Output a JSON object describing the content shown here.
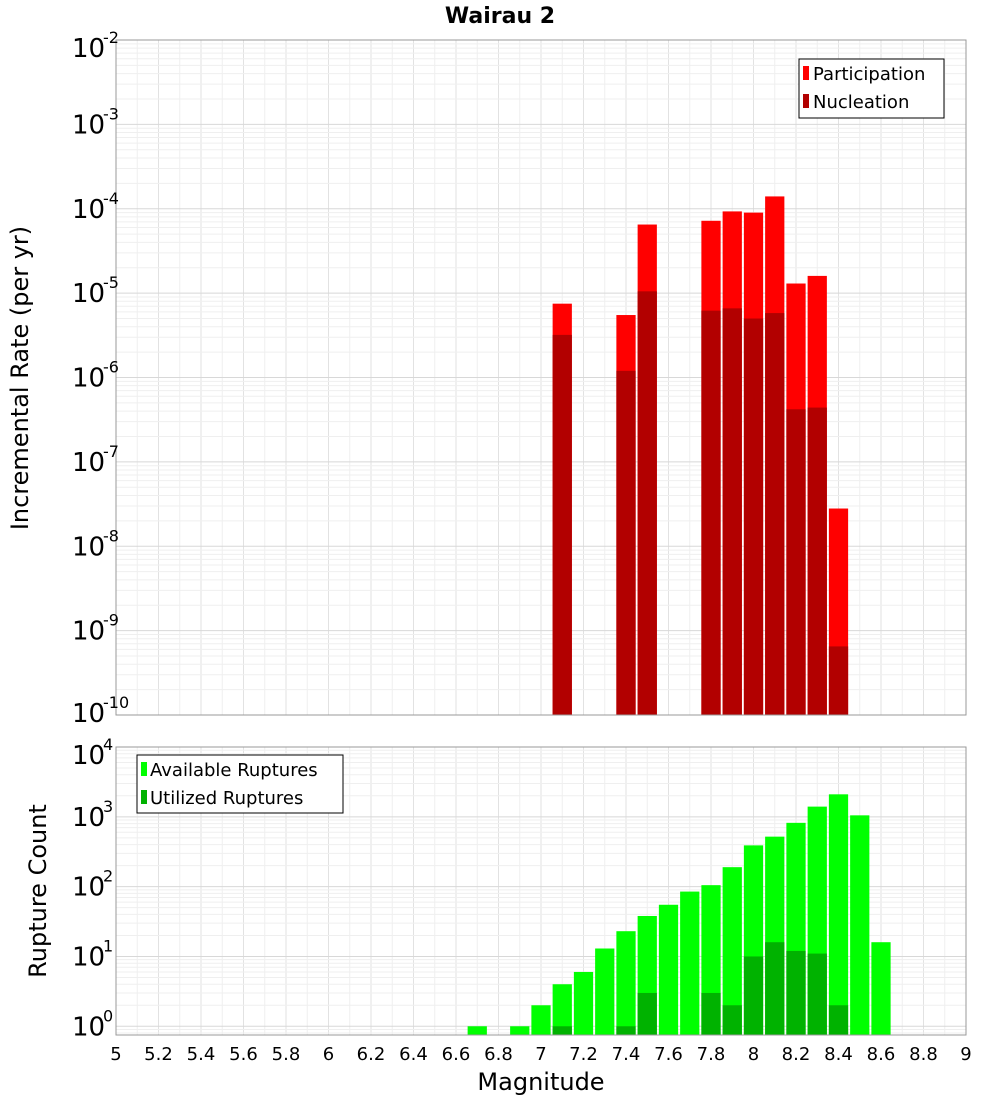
{
  "chart_data": [
    {
      "type": "bar",
      "title": "Wairau 2",
      "xlabel": "",
      "ylabel": "Incremental Rate (per yr)",
      "yscale": "log",
      "ylim": [
        1e-10,
        0.01
      ],
      "xlim": [
        5,
        9
      ],
      "grid": true,
      "legend_position": "top-right",
      "bin_width": 0.1,
      "x": [
        7.1,
        7.4,
        7.5,
        7.8,
        7.9,
        8.0,
        8.1,
        8.2,
        8.3,
        8.4
      ],
      "series": [
        {
          "name": "Participation",
          "color": "#ff0000",
          "values": [
            7.5e-06,
            5.5e-06,
            6.5e-05,
            7.2e-05,
            9.3e-05,
            9e-05,
            0.00014,
            1.3e-05,
            1.6e-05,
            2.8e-08
          ]
        },
        {
          "name": "Nucleation",
          "color": "#b20000",
          "values": [
            3.2e-06,
            1.2e-06,
            1.05e-05,
            6.2e-06,
            6.6e-06,
            5e-06,
            5.8e-06,
            4.2e-07,
            4.4e-07,
            6.5e-10
          ]
        }
      ]
    },
    {
      "type": "bar",
      "title": "",
      "xlabel": "Magnitude",
      "ylabel": "Rupture Count",
      "yscale": "log",
      "ylim": [
        0.75,
        10000
      ],
      "xlim": [
        5,
        9
      ],
      "grid": true,
      "legend_position": "top-left",
      "bin_width": 0.1,
      "x_ticks": [
        "5",
        "5.2",
        "5.4",
        "5.6",
        "5.8",
        "6",
        "6.2",
        "6.4",
        "6.6",
        "6.8",
        "7",
        "7.2",
        "7.4",
        "7.6",
        "7.8",
        "8",
        "8.2",
        "8.4",
        "8.6",
        "8.8",
        "9"
      ],
      "series": [
        {
          "name": "Available Ruptures",
          "color": "#00ff00",
          "x": [
            6.7,
            6.9,
            7.0,
            7.1,
            7.2,
            7.3,
            7.4,
            7.5,
            7.6,
            7.7,
            7.8,
            7.9,
            8.0,
            8.1,
            8.2,
            8.3,
            8.4,
            8.5,
            8.6
          ],
          "values": [
            1,
            1,
            2,
            4,
            6,
            13,
            23,
            38,
            55,
            85,
            105,
            190,
            390,
            520,
            820,
            1400,
            2100,
            1050,
            16
          ]
        },
        {
          "name": "Utilized Ruptures",
          "color": "#00b200",
          "x": [
            7.1,
            7.4,
            7.5,
            7.8,
            7.9,
            8.0,
            8.1,
            8.2,
            8.3,
            8.4
          ],
          "values": [
            1,
            1,
            3,
            3,
            2,
            10,
            16,
            12,
            11,
            2
          ]
        }
      ]
    }
  ]
}
